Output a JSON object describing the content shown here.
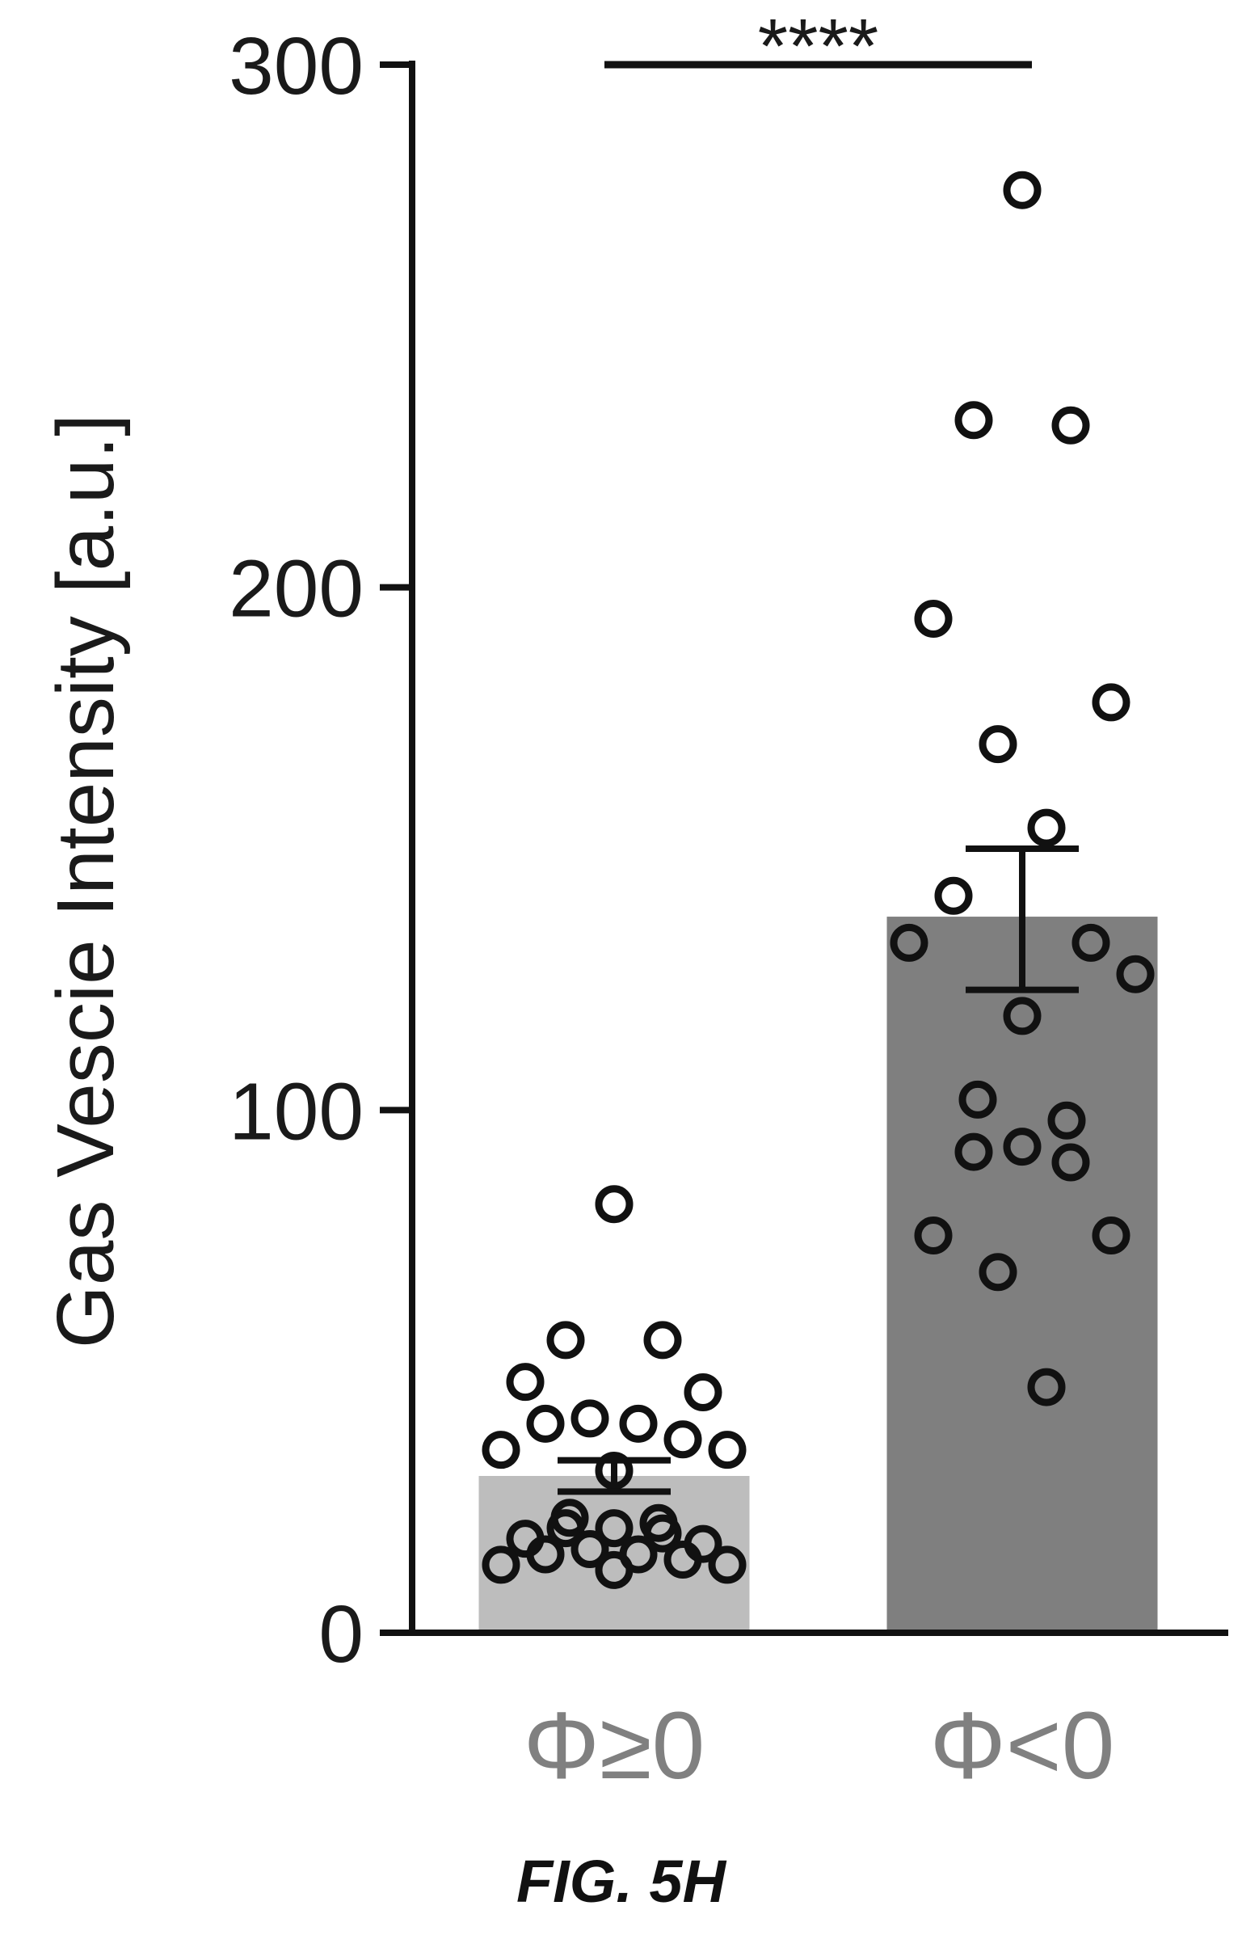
{
  "chart_data": {
    "type": "bar",
    "ylabel": "Gas Vescie Intensity [a.u.]",
    "ylim": [
      0,
      300
    ],
    "yticks": [
      0,
      100,
      200,
      300
    ],
    "categories": [
      "Φ≥0",
      "Φ<0"
    ],
    "bar_colors": [
      "#bdbdbd",
      "#7f7f7f"
    ],
    "label_color": "#808080",
    "means": [
      30,
      137
    ],
    "errors": [
      {
        "low": 27,
        "high": 33
      },
      {
        "low": 123,
        "high": 150
      }
    ],
    "points": [
      [
        82,
        56,
        56,
        48,
        46,
        41,
        40,
        40,
        37,
        35,
        35,
        31,
        22,
        21,
        20,
        20,
        19,
        18,
        17,
        16,
        15,
        15,
        14,
        13,
        13,
        12
      ],
      [
        276,
        232,
        231,
        194,
        178,
        170,
        154,
        141,
        132,
        132,
        126,
        118,
        102,
        98,
        93,
        92,
        90,
        76,
        76,
        69,
        47
      ]
    ],
    "significance": "****",
    "grid": false,
    "legend": "none"
  },
  "caption": "FIG. 5H"
}
